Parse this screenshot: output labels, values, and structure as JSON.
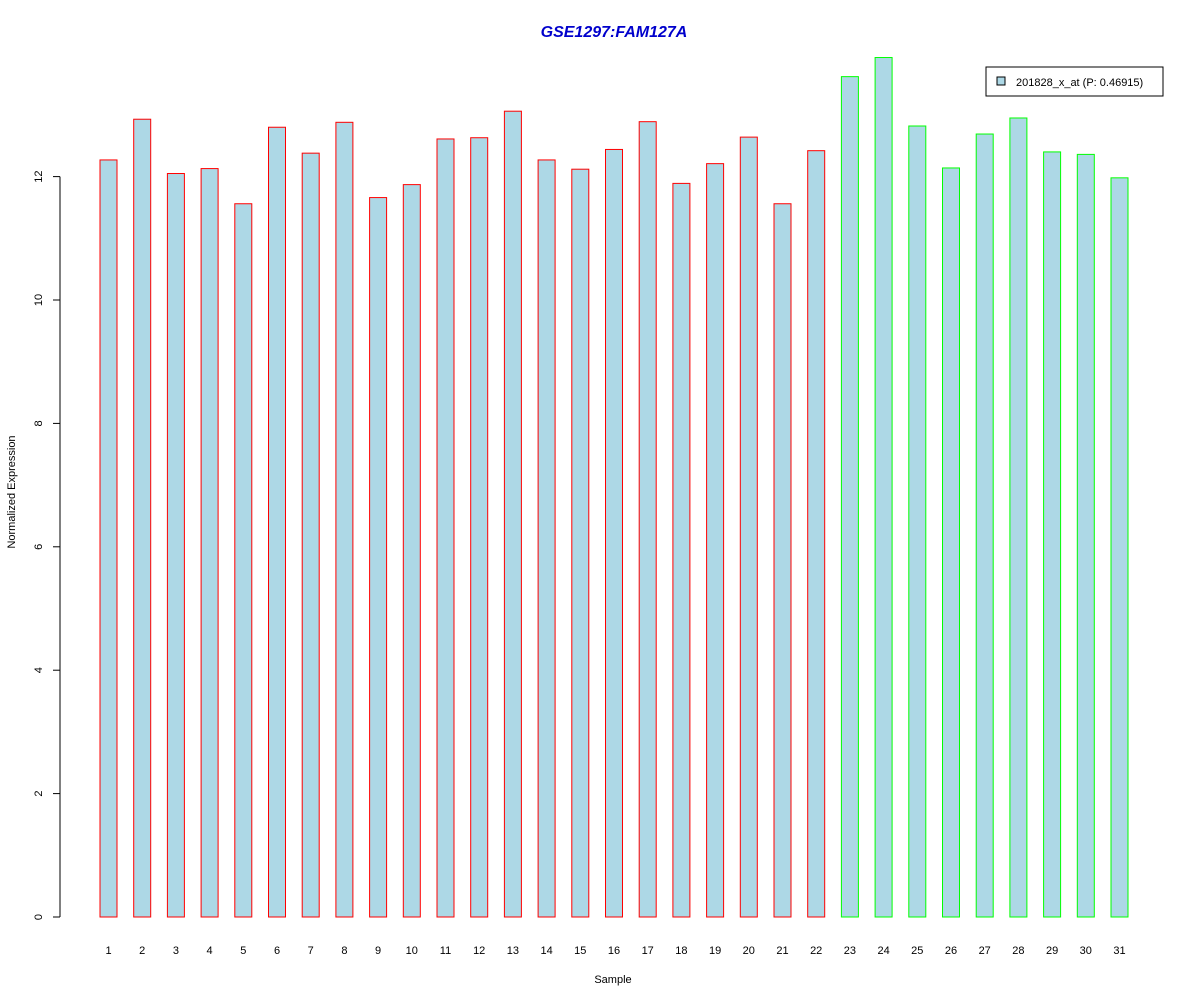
{
  "chart_data": {
    "type": "bar",
    "title": "GSE1297:FAM127A",
    "xlabel": "Sample",
    "ylabel": "Normalized Expression",
    "categories": [
      "1",
      "2",
      "3",
      "4",
      "5",
      "6",
      "7",
      "8",
      "9",
      "10",
      "11",
      "12",
      "13",
      "14",
      "15",
      "16",
      "17",
      "18",
      "19",
      "20",
      "21",
      "22",
      "23",
      "24",
      "25",
      "26",
      "27",
      "28",
      "29",
      "30",
      "31"
    ],
    "values": [
      12.27,
      12.93,
      12.05,
      12.13,
      11.56,
      12.8,
      12.38,
      12.88,
      11.66,
      11.87,
      12.61,
      12.63,
      13.06,
      12.27,
      12.12,
      12.44,
      12.89,
      11.89,
      12.21,
      12.64,
      11.56,
      12.42,
      13.62,
      13.93,
      12.82,
      12.14,
      12.69,
      12.95,
      12.4,
      12.36,
      11.98
    ],
    "groups": [
      "red",
      "red",
      "red",
      "red",
      "red",
      "red",
      "red",
      "red",
      "red",
      "red",
      "red",
      "red",
      "red",
      "red",
      "red",
      "red",
      "red",
      "red",
      "red",
      "red",
      "red",
      "red",
      "green",
      "green",
      "green",
      "green",
      "green",
      "green",
      "green",
      "green",
      "green"
    ],
    "ylim": [
      0,
      14
    ],
    "yticks": [
      0,
      2,
      4,
      6,
      8,
      10,
      12
    ],
    "grid": false,
    "legend": {
      "placement": "top-right",
      "entries": [
        {
          "label": "201828_x_at (P: 0.46915)",
          "color": "#add8e6"
        }
      ]
    },
    "colors": {
      "title": "#0000cc",
      "bar_fill": "#add8e6",
      "border_red": "#ff0000",
      "border_green": "#00ff00"
    }
  }
}
